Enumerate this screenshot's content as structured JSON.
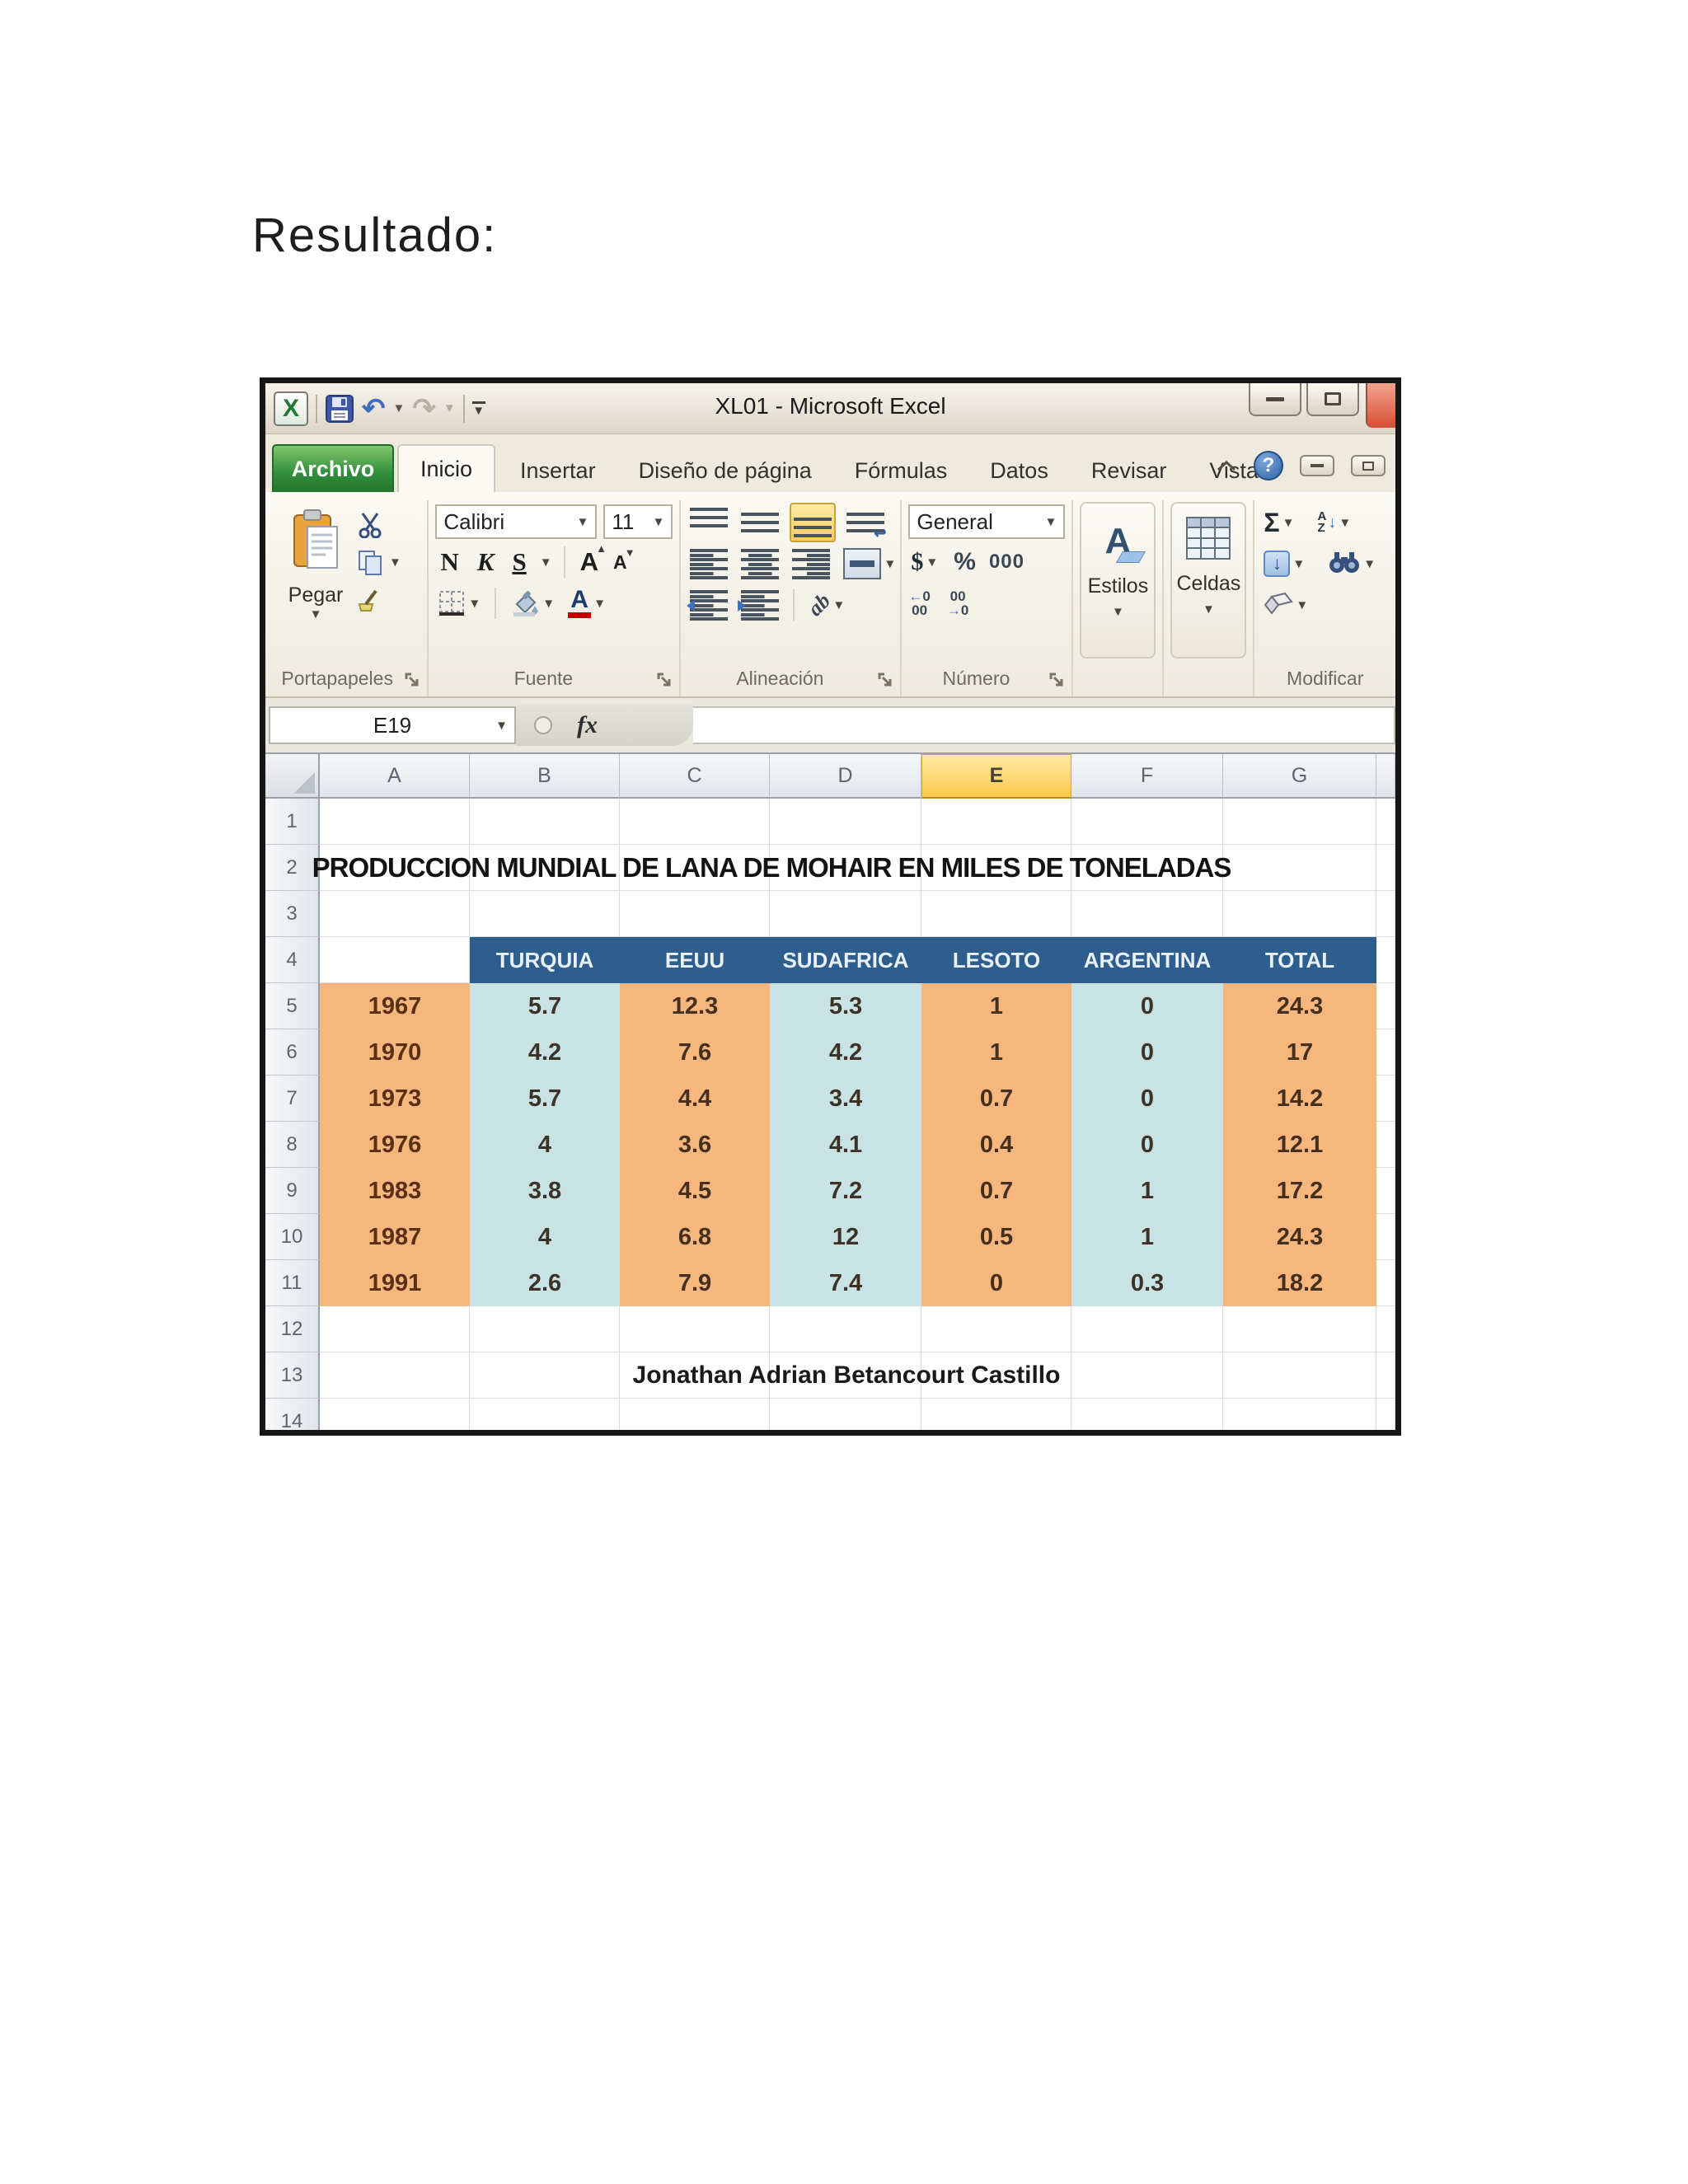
{
  "page": {
    "heading": "Resultado:"
  },
  "window": {
    "title": "XL01 - Microsoft Excel",
    "tabs": [
      "Archivo",
      "Inicio",
      "Insertar",
      "Diseño de página",
      "Fórmulas",
      "Datos",
      "Revisar",
      "Vista"
    ],
    "ribbon": {
      "clipboard": {
        "label": "Portapapeles",
        "paste": "Pegar"
      },
      "font": {
        "label": "Fuente",
        "name": "Calibri",
        "size": "11",
        "bold": "N",
        "italic": "K",
        "underline": "S",
        "grow": "A",
        "shrink": "A"
      },
      "alignment": {
        "label": "Alineación",
        "orientation": "ab"
      },
      "number": {
        "label": "Número",
        "format": "General",
        "currency": "$",
        "percent": "%",
        "thousands": "000"
      },
      "styles": {
        "label": "Estilos"
      },
      "cells": {
        "label": "Celdas"
      },
      "editing": {
        "label": "Modificar",
        "autosum": "Σ",
        "sort_a": "A",
        "sort_z": "Z"
      }
    },
    "formula_bar": {
      "name_box": "E19",
      "fx": "fx",
      "formula": ""
    }
  },
  "sheet": {
    "col_letters": [
      "A",
      "B",
      "C",
      "D",
      "E",
      "F",
      "G"
    ],
    "selected_col": "E",
    "row_count": 14,
    "title": {
      "row": 2,
      "text": "PRODUCCION MUNDIAL DE LANA DE MOHAIR EN MILES DE TONELADAS"
    },
    "table_header": {
      "row": 4,
      "labels": [
        "TURQUIA",
        "EEUU",
        "SUDAFRICA",
        "LESOTO",
        "ARGENTINA",
        "TOTAL"
      ]
    },
    "rows": [
      {
        "row": 5,
        "year": "1967",
        "values": [
          "5.7",
          "12.3",
          "5.3",
          "1",
          "0",
          "24.3"
        ]
      },
      {
        "row": 6,
        "year": "1970",
        "values": [
          "4.2",
          "7.6",
          "4.2",
          "1",
          "0",
          "17"
        ]
      },
      {
        "row": 7,
        "year": "1973",
        "values": [
          "5.7",
          "4.4",
          "3.4",
          "0.7",
          "0",
          "14.2"
        ]
      },
      {
        "row": 8,
        "year": "1976",
        "values": [
          "4",
          "3.6",
          "4.1",
          "0.4",
          "0",
          "12.1"
        ]
      },
      {
        "row": 9,
        "year": "1983",
        "values": [
          "3.8",
          "4.5",
          "7.2",
          "0.7",
          "1",
          "17.2"
        ]
      },
      {
        "row": 10,
        "year": "1987",
        "values": [
          "4",
          "6.8",
          "12",
          "0.5",
          "1",
          "24.3"
        ]
      },
      {
        "row": 11,
        "year": "1991",
        "values": [
          "2.6",
          "7.9",
          "7.4",
          "0",
          "0.3",
          "18.2"
        ]
      }
    ],
    "author": {
      "row": 13,
      "text": "Jonathan Adrian Betancourt Castillo"
    }
  },
  "colors": {
    "table_header_blue": "#2e5e8e",
    "cell_orange": "#f6b77f",
    "cell_blue": "#c9e2e4",
    "selected_column_gold": "#fbc94c",
    "archivo_green": "#2e8f3c"
  }
}
